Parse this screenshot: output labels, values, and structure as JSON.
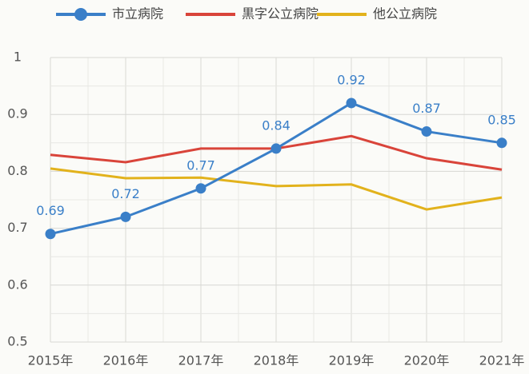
{
  "chart_data": {
    "type": "line",
    "categories": [
      "2015年",
      "2016年",
      "2017年",
      "2018年",
      "2019年",
      "2020年",
      "2021年"
    ],
    "series": [
      {
        "name": "市立病院",
        "color": "#3a7fc8",
        "values": [
          0.69,
          0.72,
          0.77,
          0.84,
          0.92,
          0.87,
          0.85
        ],
        "markers": true,
        "data_labels": true
      },
      {
        "name": "黒字公立病院",
        "color": "#d9443a",
        "values": [
          0.829,
          0.816,
          0.84,
          0.84,
          0.862,
          0.823,
          0.803
        ]
      },
      {
        "name": "他公立病院",
        "color": "#e2b21c",
        "values": [
          0.805,
          0.788,
          0.789,
          0.774,
          0.777,
          0.733,
          0.754
        ]
      }
    ],
    "ylim": [
      0.5,
      1
    ],
    "yticks": [
      0.5,
      0.6,
      0.7,
      0.8,
      0.9,
      1
    ],
    "grid": true,
    "legend": "top"
  }
}
